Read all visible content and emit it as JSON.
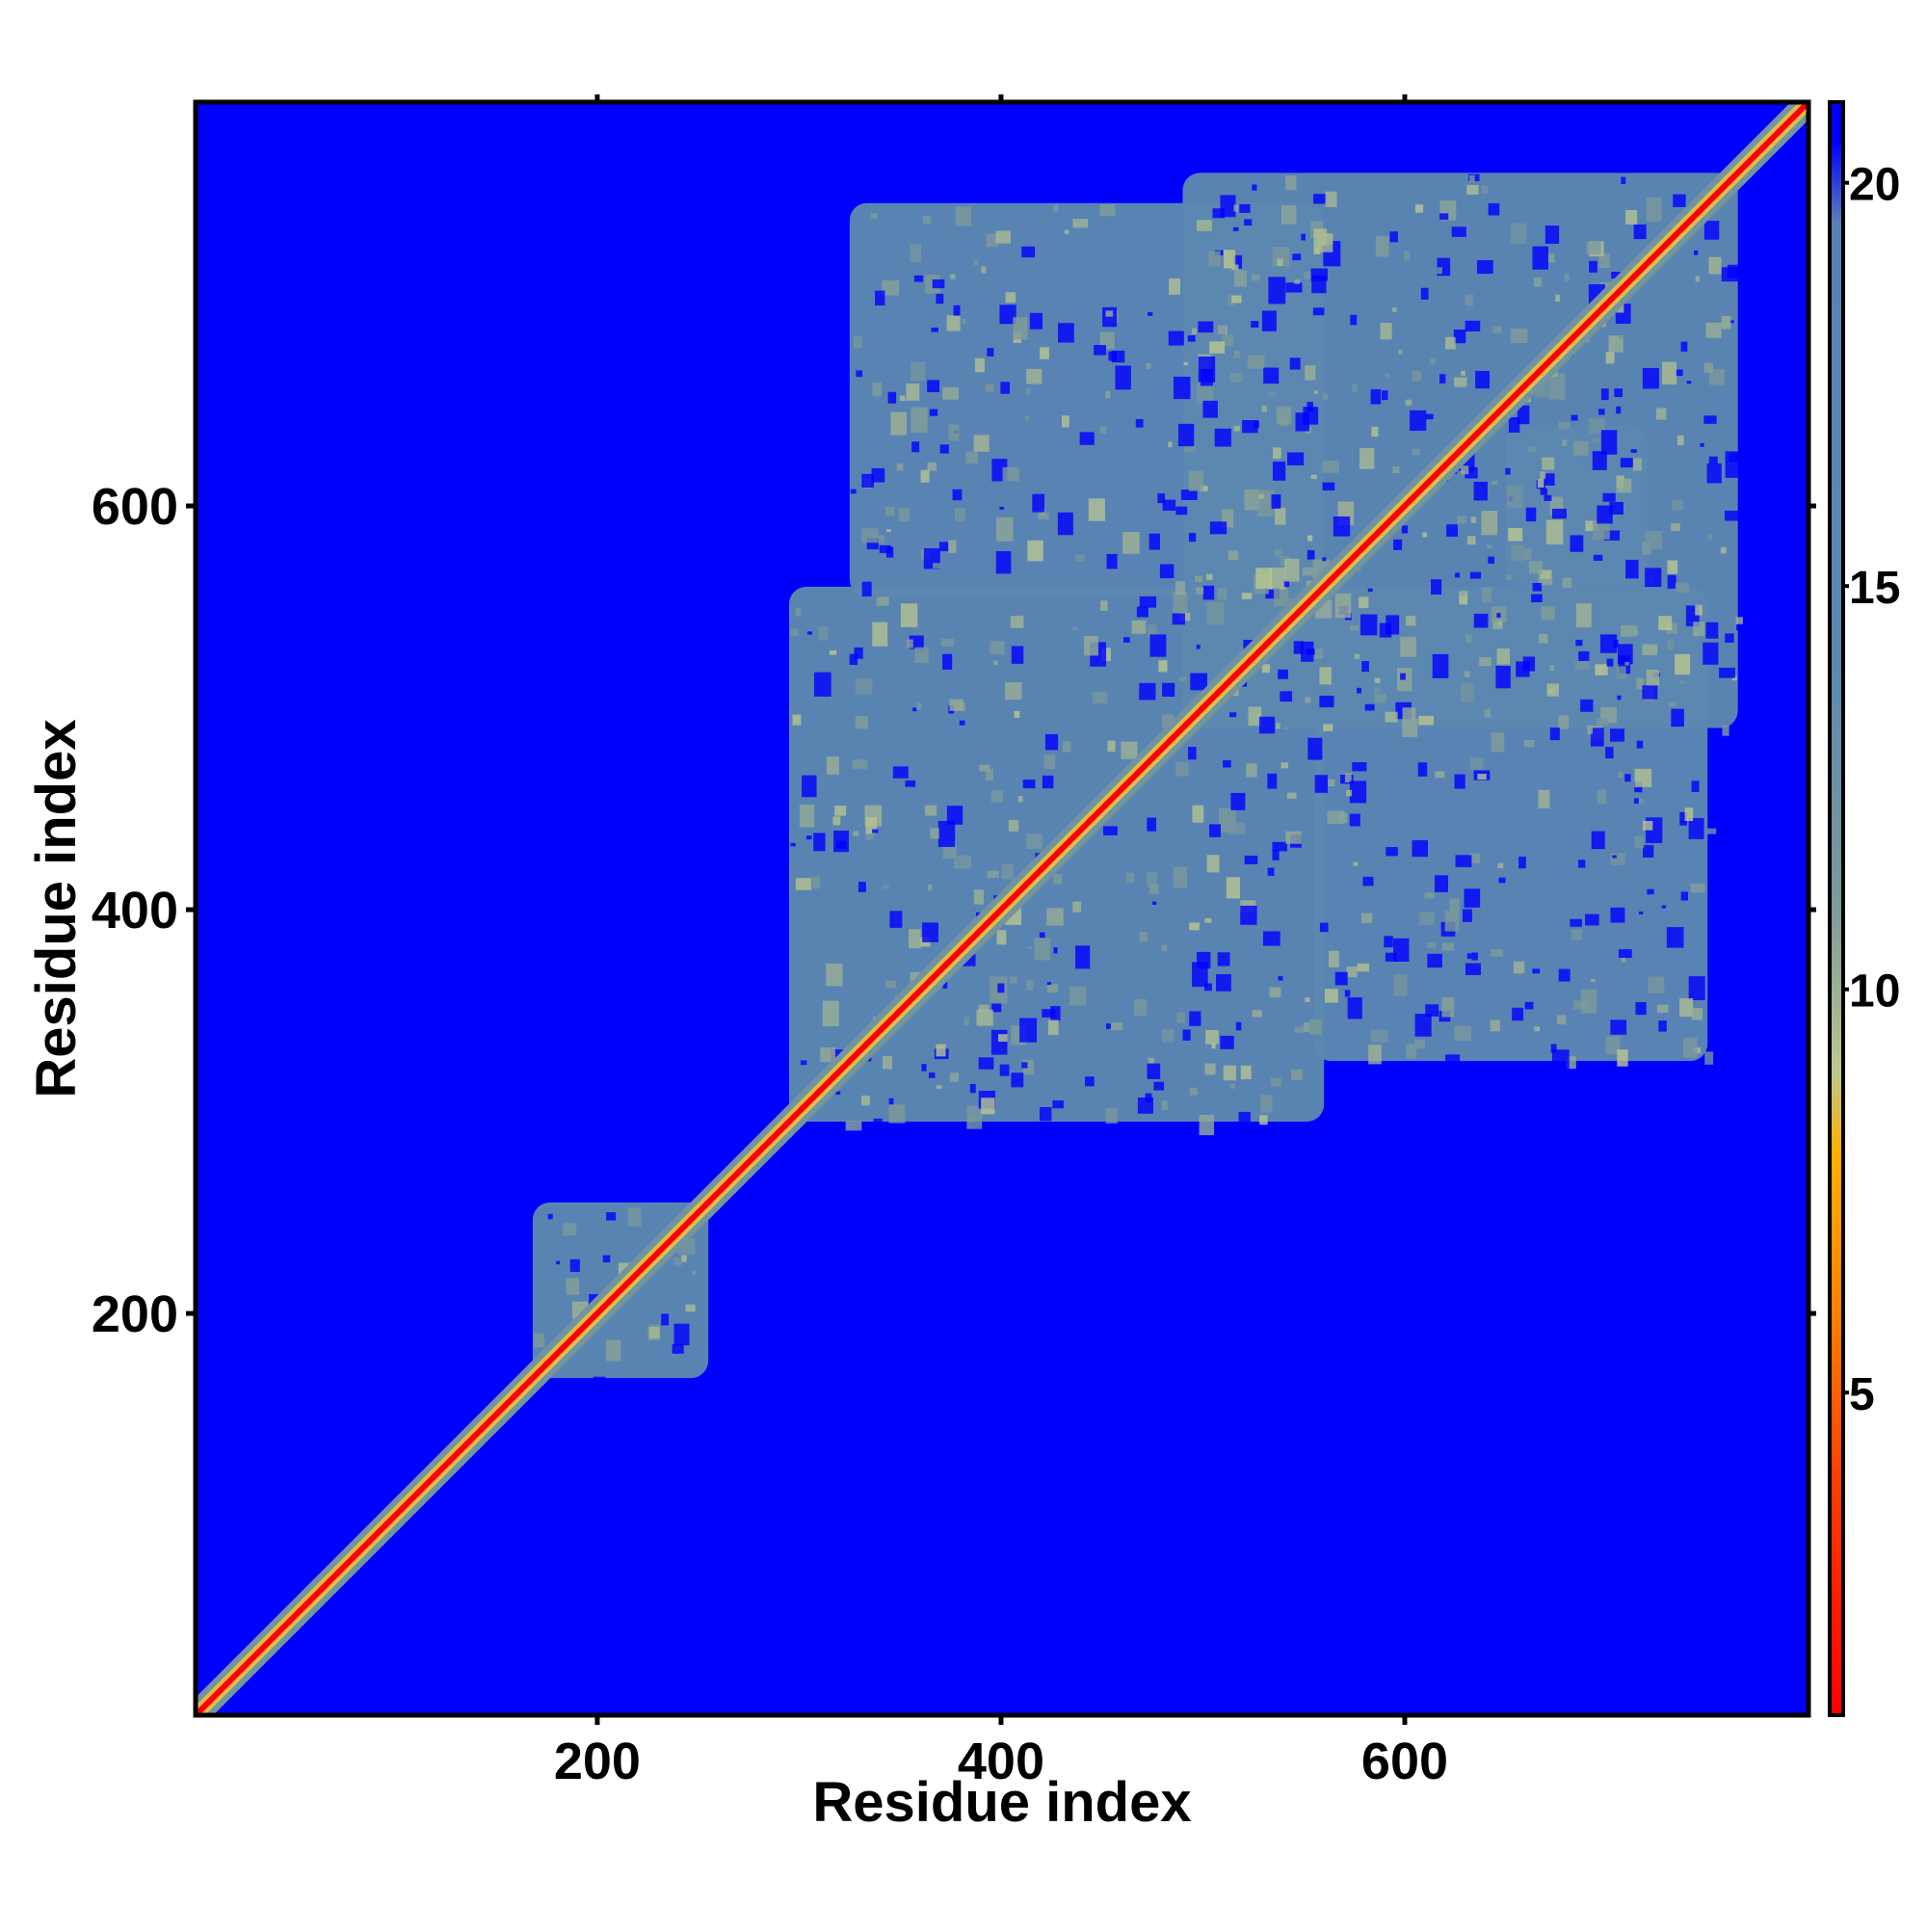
{
  "chart_data": {
    "type": "heatmap",
    "title": "",
    "xlabel": "Residue index",
    "ylabel": "Residue index",
    "xlim": [
      1,
      800
    ],
    "ylim": [
      1,
      800
    ],
    "x_ticks": [
      200,
      400,
      600
    ],
    "y_ticks": [
      200,
      400,
      600
    ],
    "x_tick_labels": [
      "200",
      "400",
      "600"
    ],
    "y_tick_labels": [
      "200",
      "400",
      "600"
    ],
    "colorbar": {
      "range": [
        1,
        21
      ],
      "ticks": [
        5,
        10,
        15,
        20
      ],
      "tick_labels": [
        "5",
        "10",
        "15",
        "20"
      ],
      "stops": [
        {
          "value": 1,
          "color": "#ff0000"
        },
        {
          "value": 4,
          "color": "#ff4000"
        },
        {
          "value": 6,
          "color": "#ff8000"
        },
        {
          "value": 8,
          "color": "#ffb000"
        },
        {
          "value": 9,
          "color": "#bcc890"
        },
        {
          "value": 11,
          "color": "#7d9a9a"
        },
        {
          "value": 14,
          "color": "#5c88b0"
        },
        {
          "value": 19.5,
          "color": "#5a80b8"
        },
        {
          "value": 20.5,
          "color": "#0000ff"
        },
        {
          "value": 21,
          "color": "#0000ff"
        }
      ]
    },
    "background_value": 21,
    "diagonal_value": 1,
    "contact_regions": [
      {
        "x": [
          168,
          255
        ],
        "y": [
          168,
          255
        ],
        "value": 14
      },
      {
        "x": [
          295,
          560
        ],
        "y": [
          295,
          560
        ],
        "value": 14
      },
      {
        "x": [
          490,
          765
        ],
        "y": [
          490,
          765
        ],
        "value": 14
      },
      {
        "x": [
          325,
          560
        ],
        "y": [
          555,
          750
        ],
        "value": 15
      },
      {
        "x": [
          555,
          750
        ],
        "y": [
          325,
          560
        ],
        "value": 15
      },
      {
        "x": [
          650,
          720
        ],
        "y": [
          560,
          640
        ],
        "value": 15
      }
    ]
  }
}
